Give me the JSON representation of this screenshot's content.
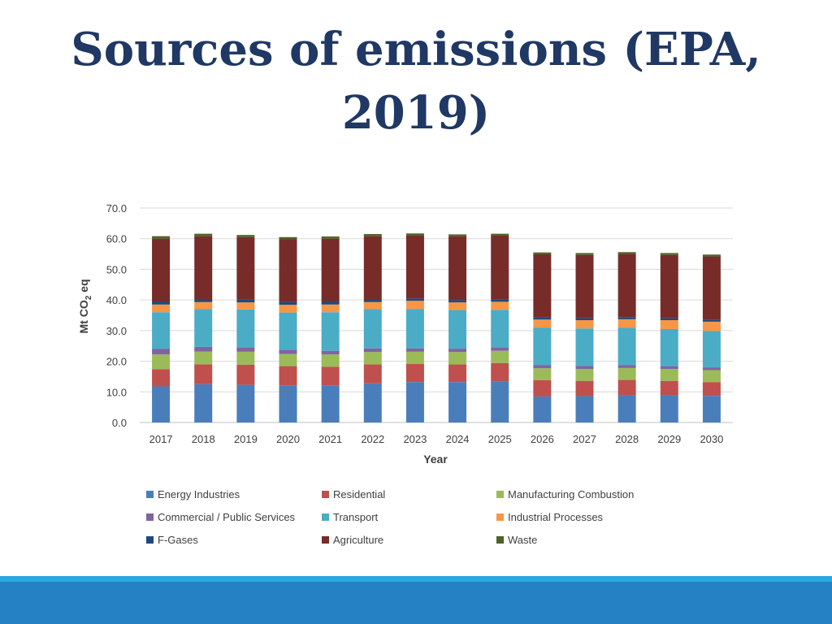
{
  "slide": {
    "title": "Sources of emissions (EPA, 2019)"
  },
  "colors": {
    "title": "#1f3864",
    "footer_stripe": "#29a9e0",
    "footer_band": "#2581c4"
  },
  "chart_data": {
    "type": "bar",
    "stacked": true,
    "title": "",
    "xlabel": "Year",
    "ylabel_main": "Mt CO",
    "ylabel_sub": "2",
    "ylabel_tail": " eq",
    "ylim": [
      0,
      70
    ],
    "yticks": [
      "0.0",
      "10.0",
      "20.0",
      "30.0",
      "40.0",
      "50.0",
      "60.0",
      "70.0"
    ],
    "grid": true,
    "legend_position": "bottom",
    "categories": [
      "2017",
      "2018",
      "2019",
      "2020",
      "2021",
      "2022",
      "2023",
      "2024",
      "2025",
      "2026",
      "2027",
      "2028",
      "2029",
      "2030"
    ],
    "series": [
      {
        "name": "Energy Industries",
        "color": "#4a7ebb",
        "values": [
          11.8,
          12.5,
          12.3,
          12.0,
          12.0,
          12.8,
          13.2,
          13.2,
          13.5,
          8.5,
          8.6,
          8.9,
          8.9,
          8.7
        ]
      },
      {
        "name": "Residential",
        "color": "#c0504d",
        "values": [
          5.6,
          6.5,
          6.6,
          6.4,
          6.2,
          6.2,
          5.9,
          5.8,
          5.9,
          5.3,
          5.0,
          5.0,
          4.7,
          4.5
        ]
      },
      {
        "name": "Manufacturing Combustion",
        "color": "#9bbb59",
        "values": [
          4.8,
          4.2,
          4.2,
          4.0,
          4.0,
          4.0,
          4.0,
          4.0,
          4.0,
          3.9,
          3.9,
          3.9,
          3.9,
          3.9
        ]
      },
      {
        "name": "Commercial / Public Services",
        "color": "#8064a2",
        "values": [
          1.8,
          1.5,
          1.4,
          1.2,
          1.2,
          1.2,
          1.1,
          1.1,
          1.1,
          1.0,
          1.0,
          0.9,
          0.9,
          0.8
        ]
      },
      {
        "name": "Transport",
        "color": "#4bacc6",
        "values": [
          12.0,
          12.3,
          12.4,
          12.3,
          12.6,
          12.8,
          12.8,
          12.6,
          12.3,
          12.3,
          12.2,
          12.2,
          12.1,
          12.0
        ]
      },
      {
        "name": "Industrial Processes",
        "color": "#f79646",
        "values": [
          2.5,
          2.3,
          2.3,
          2.5,
          2.5,
          2.3,
          2.7,
          2.5,
          2.6,
          2.6,
          2.7,
          2.8,
          2.9,
          3.0
        ]
      },
      {
        "name": "F-Gases",
        "color": "#1f497d",
        "values": [
          1.0,
          1.0,
          1.0,
          1.0,
          1.0,
          1.0,
          0.8,
          0.8,
          0.8,
          0.7,
          0.7,
          0.7,
          0.7,
          0.7
        ]
      },
      {
        "name": "Agriculture",
        "color": "#772c2a",
        "values": [
          20.5,
          20.5,
          20.3,
          20.5,
          20.5,
          20.5,
          20.5,
          20.8,
          20.8,
          20.6,
          20.6,
          20.6,
          20.6,
          20.6
        ]
      },
      {
        "name": "Waste",
        "color": "#4f6228",
        "values": [
          0.8,
          0.8,
          0.7,
          0.6,
          0.7,
          0.7,
          0.7,
          0.6,
          0.6,
          0.6,
          0.6,
          0.6,
          0.6,
          0.6
        ]
      }
    ]
  }
}
